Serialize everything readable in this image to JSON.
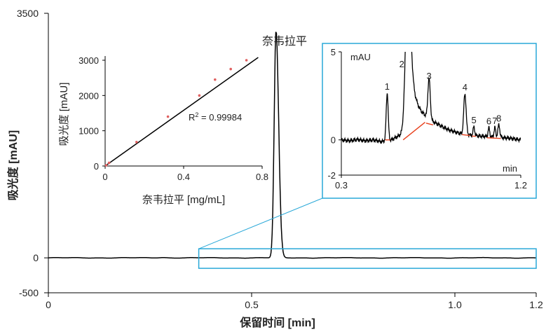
{
  "chart_data": [
    {
      "id": "main",
      "type": "line",
      "xlabel": "保留时间 [min]",
      "ylabel": "吸光度 [mAU]",
      "xlim": [
        0,
        1.2
      ],
      "ylim": [
        -500,
        3500
      ],
      "xticks": [
        {
          "value": 0,
          "label": "0"
        },
        {
          "value": 0.5,
          "label": "0.5"
        },
        {
          "value": 1.0,
          "label": "1.0"
        },
        {
          "value": 1.2,
          "label": "1.2"
        }
      ],
      "yticks": [
        {
          "value": 3500,
          "label": "3500"
        },
        {
          "value": 0,
          "label": "0"
        },
        {
          "value": -500,
          "label": "-500"
        }
      ],
      "peak": {
        "label": "奈韦拉平",
        "rt": 0.56,
        "height": 3250
      },
      "zoom_region": {
        "xmin": 0.37,
        "xmax": 1.2,
        "ymin": -150,
        "ymax": 130
      },
      "colors": {
        "trace": "#000000",
        "zoom_box": "#29a8d8"
      }
    },
    {
      "id": "calibration",
      "type": "scatter",
      "xlabel": "奈韦拉平 [mg/mL]",
      "ylabel": "吸光度 [mAU]",
      "xlim": [
        0,
        0.8
      ],
      "ylim": [
        0,
        3000
      ],
      "xticks": [
        {
          "value": 0,
          "label": "0"
        },
        {
          "value": 0.4,
          "label": "0.4"
        },
        {
          "value": 0.8,
          "label": "0.8"
        }
      ],
      "yticks": [
        {
          "value": 0,
          "label": "0"
        },
        {
          "value": 1000,
          "label": "1000"
        },
        {
          "value": 2000,
          "label": "2000"
        },
        {
          "value": 3000,
          "label": "3000"
        }
      ],
      "points": [
        {
          "x": 0.005,
          "y": 20
        },
        {
          "x": 0.02,
          "y": 90
        },
        {
          "x": 0.16,
          "y": 680
        },
        {
          "x": 0.32,
          "y": 1400
        },
        {
          "x": 0.48,
          "y": 2000
        },
        {
          "x": 0.56,
          "y": 2450
        },
        {
          "x": 0.64,
          "y": 2750
        },
        {
          "x": 0.72,
          "y": 3000
        }
      ],
      "fit_line": {
        "x": [
          0,
          0.78
        ],
        "y": [
          0,
          3080
        ]
      },
      "r_squared_label": {
        "prefix": "R",
        "sup": "2",
        "text": " = 0.99984"
      },
      "colors": {
        "points": "#e06060",
        "line": "#000000"
      }
    },
    {
      "id": "zoom",
      "type": "line",
      "unit_label": "mAU",
      "xunit_label": "min",
      "xlim": [
        0.3,
        1.2
      ],
      "ylim": [
        -2,
        5
      ],
      "xticks": [
        {
          "value": 0.3,
          "label": "0.3"
        },
        {
          "value": 1.2,
          "label": "1.2"
        }
      ],
      "yticks": [
        {
          "value": 5,
          "label": "5"
        },
        {
          "value": 0,
          "label": "0"
        },
        {
          "value": -2,
          "label": "-2"
        }
      ],
      "baseline": [
        {
          "x": 0.3,
          "y": 0.0
        },
        {
          "x": 0.34,
          "y": -0.05
        },
        {
          "x": 0.38,
          "y": 0.02
        },
        {
          "x": 0.42,
          "y": -0.05
        },
        {
          "x": 0.46,
          "y": 0.0
        },
        {
          "x": 0.5,
          "y": -0.1
        },
        {
          "x": 0.55,
          "y": 0.0
        },
        {
          "x": 0.6,
          "y": 0.3
        },
        {
          "x": 0.66,
          "y": 0.75
        },
        {
          "x": 0.72,
          "y": 1.0
        },
        {
          "x": 0.78,
          "y": 0.85
        },
        {
          "x": 0.84,
          "y": 0.55
        },
        {
          "x": 0.9,
          "y": 0.35
        },
        {
          "x": 0.96,
          "y": 0.25
        },
        {
          "x": 1.02,
          "y": 0.2
        },
        {
          "x": 1.08,
          "y": 0.15
        },
        {
          "x": 1.14,
          "y": 0.1
        },
        {
          "x": 1.2,
          "y": 0.0
        }
      ],
      "peaks": [
        {
          "label": "1",
          "rt": 0.53,
          "height": 2.7,
          "width": 0.005
        },
        {
          "label": "2",
          "rt": 0.635,
          "height": 9.5,
          "width": 0.012,
          "tail": 0.035
        },
        {
          "label": "3",
          "rt": 0.74,
          "height": 2.3,
          "width": 0.006
        },
        {
          "label": "4",
          "rt": 0.92,
          "height": 2.3,
          "width": 0.006
        },
        {
          "label": "5",
          "rt": 0.965,
          "height": 0.5,
          "width": 0.004
        },
        {
          "label": "6",
          "rt": 1.04,
          "height": 0.5,
          "width": 0.004
        },
        {
          "label": "7",
          "rt": 1.07,
          "height": 0.55,
          "width": 0.004
        },
        {
          "label": "8",
          "rt": 1.09,
          "height": 0.7,
          "width": 0.005
        }
      ],
      "integration_segments": [
        {
          "x1": 0.52,
          "y1": 0.0,
          "x2": 0.545,
          "y2": 0.0
        },
        {
          "x1": 0.61,
          "y1": 0.0,
          "x2": 0.72,
          "y2": 1.0
        },
        {
          "x1": 0.725,
          "y1": 0.95,
          "x2": 0.76,
          "y2": 0.85
        },
        {
          "x1": 0.905,
          "y1": 0.3,
          "x2": 0.945,
          "y2": 0.25
        },
        {
          "x1": 0.955,
          "y1": 0.22,
          "x2": 0.975,
          "y2": 0.2
        },
        {
          "x1": 1.03,
          "y1": 0.12,
          "x2": 1.1,
          "y2": 0.08
        }
      ],
      "colors": {
        "trace": "#000000",
        "integration": "#e8401c",
        "frame": "#29a8d8"
      }
    }
  ]
}
